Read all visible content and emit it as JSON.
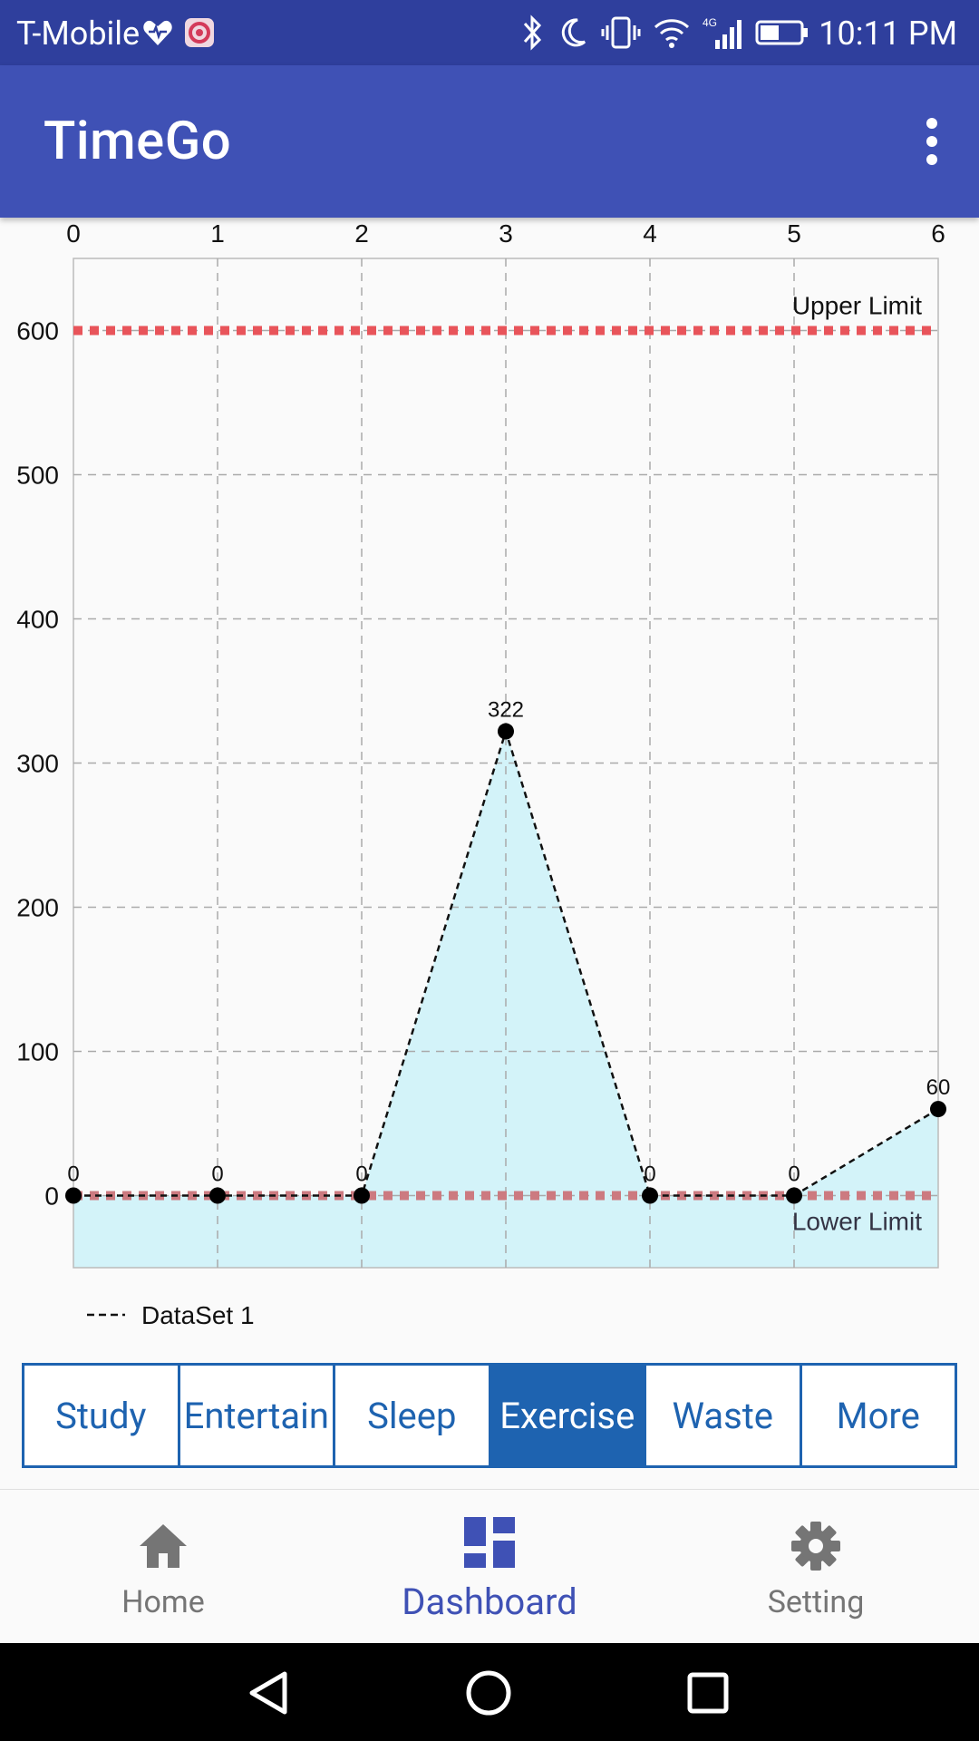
{
  "status_bar": {
    "carrier": "T-Mobile",
    "time": "10:11 PM",
    "network": "4G"
  },
  "app_bar": {
    "title": "TimeGo"
  },
  "chart_data": {
    "type": "line",
    "x": [
      0,
      1,
      2,
      3,
      4,
      5,
      6
    ],
    "series": [
      {
        "name": "DataSet 1",
        "values": [
          0,
          0,
          0,
          322,
          0,
          0,
          60
        ]
      }
    ],
    "xlim": [
      0,
      6
    ],
    "ylim": [
      -50,
      650
    ],
    "x_ticks": [
      0,
      1,
      2,
      3,
      4,
      5,
      6
    ],
    "y_ticks": [
      0,
      100,
      200,
      300,
      400,
      500,
      600
    ],
    "x_axis_position": "top",
    "grid": true,
    "fill": true,
    "fill_color": "#d3f3f9",
    "line_style": "dashed",
    "limit_lines": [
      {
        "label": "Upper Limit",
        "value": 600,
        "color": "#e8545a"
      },
      {
        "label": "Lower Limit",
        "value": 0,
        "color": "#cc7a80"
      }
    ],
    "legend_position": "bottom-left"
  },
  "tabs": [
    {
      "label": "Study",
      "active": false
    },
    {
      "label": "Entertain",
      "active": false
    },
    {
      "label": "Sleep",
      "active": false
    },
    {
      "label": "Exercise",
      "active": true
    },
    {
      "label": "Waste",
      "active": false
    },
    {
      "label": "More",
      "active": false
    }
  ],
  "bottom_nav": {
    "home": {
      "label": "Home",
      "icon": "home-icon"
    },
    "dashboard": {
      "label": "Dashboard",
      "icon": "dashboard-icon"
    },
    "setting": {
      "label": "Setting",
      "icon": "gear-icon"
    }
  },
  "colors": {
    "primary": "#3f51b5",
    "status_bar": "#2f3f9d",
    "tab_accent": "#1e63b0"
  }
}
